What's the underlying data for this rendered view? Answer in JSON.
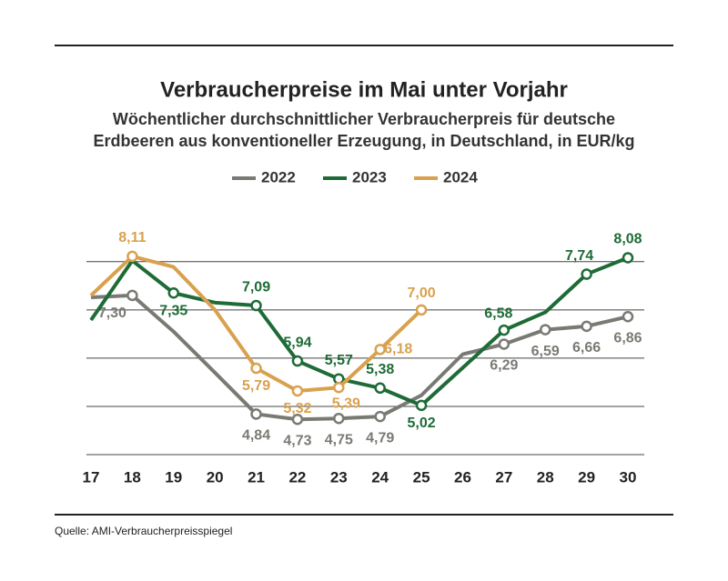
{
  "chart_data": {
    "type": "line",
    "title": "Verbraucherpreise im Mai unter Vorjahr",
    "subtitle": [
      "Wöchentlicher durchschnittlicher Verbraucherpreis für deutsche",
      "Erdbeeren aus konventioneller Erzeugung, in Deutschland, in EUR/kg"
    ],
    "source": "Quelle: AMI-Verbraucherpreisspiegel",
    "categories": [
      "17",
      "18",
      "19",
      "20",
      "21",
      "22",
      "23",
      "24",
      "25",
      "26",
      "27",
      "28",
      "29",
      "30"
    ],
    "ylim": [
      4,
      8.9
    ],
    "yticks": [
      4,
      5,
      6,
      7,
      8
    ],
    "grid": true,
    "series": [
      {
        "name": "2022",
        "color": "#7a7a74",
        "values": [
          7.26,
          7.3,
          6.55,
          5.7,
          4.84,
          4.73,
          4.75,
          4.79,
          5.23,
          6.08,
          6.29,
          6.59,
          6.66,
          6.86
        ],
        "value_labels": [
          null,
          "7,30",
          null,
          null,
          "4,84",
          "4,73",
          "4,75",
          "4,79",
          null,
          null,
          "6,29",
          "6,59",
          "6,66",
          "6,86"
        ]
      },
      {
        "name": "2023",
        "color": "#1e6b37",
        "values": [
          6.79,
          8.02,
          7.35,
          7.15,
          7.09,
          5.94,
          5.57,
          5.38,
          5.02,
          5.8,
          6.58,
          6.95,
          7.74,
          8.08
        ],
        "value_labels": [
          null,
          null,
          "7,35",
          null,
          "7,09",
          "5,94",
          "5,57",
          "5,38",
          "5,02",
          null,
          "6,58",
          null,
          "7,74",
          "8,08"
        ]
      },
      {
        "name": "2024",
        "color": "#d9a14e",
        "values": [
          7.3,
          8.11,
          7.89,
          7.0,
          5.79,
          5.32,
          5.39,
          6.18,
          7.0,
          null,
          null,
          null,
          null,
          null
        ],
        "value_labels": [
          null,
          "8,11",
          null,
          null,
          "5,79",
          "5,32",
          "5,39",
          "6,18",
          "7,00",
          null,
          null,
          null,
          null,
          null
        ]
      }
    ]
  }
}
